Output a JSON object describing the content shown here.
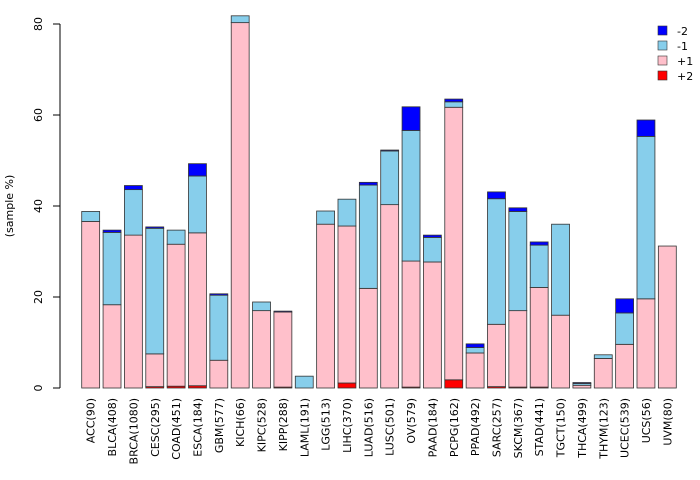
{
  "chart_data": {
    "type": "bar",
    "stacked": true,
    "title": "",
    "xlabel": "",
    "ylabel": "(sample %)",
    "ylim": [
      0,
      82
    ],
    "yticks": [
      0,
      20,
      40,
      60,
      80
    ],
    "grid": false,
    "legend_position": "top-right",
    "categories": [
      "ACC(90)",
      "BLCA(408)",
      "BRCA(1080)",
      "CESC(295)",
      "COAD(451)",
      "ESCA(184)",
      "GBM(577)",
      "KICH(66)",
      "KIPC(528)",
      "KIPP(288)",
      "LAML(191)",
      "LGG(513)",
      "LIHC(370)",
      "LUAD(516)",
      "LUSC(501)",
      "OV(579)",
      "PAAD(184)",
      "PCPG(162)",
      "PPAD(492)",
      "SARC(257)",
      "SKCM(367)",
      "STAD(441)",
      "TGCT(150)",
      "THCA(499)",
      "THYM(123)",
      "UCEC(539)",
      "UCS(56)",
      "UVM(80)"
    ],
    "series": [
      {
        "name": "+2",
        "color": "#ff0000",
        "values": [
          0,
          0,
          0,
          0.3,
          0.4,
          0.5,
          0,
          0,
          0,
          0.2,
          0,
          0,
          1.1,
          0,
          0,
          0.2,
          0,
          1.8,
          0,
          0.3,
          0.2,
          0.2,
          0,
          0,
          0,
          0,
          0,
          0
        ]
      },
      {
        "name": "+1",
        "color": "#ffc0cb",
        "values": [
          36.6,
          18.3,
          33.6,
          7.2,
          31.2,
          33.6,
          6.1,
          80.3,
          17.0,
          16.5,
          0,
          36.0,
          34.5,
          21.9,
          40.3,
          27.7,
          27.7,
          59.9,
          7.7,
          13.7,
          16.8,
          21.9,
          16.0,
          0.6,
          6.5,
          9.6,
          19.6,
          31.2
        ]
      },
      {
        "name": "-1",
        "color": "#87ceeb",
        "values": [
          2.2,
          15.9,
          10.0,
          27.6,
          3.1,
          12.5,
          14.3,
          1.5,
          1.9,
          0,
          2.6,
          2.9,
          5.9,
          22.7,
          11.8,
          28.7,
          5.4,
          1.2,
          1.2,
          27.6,
          21.8,
          9.3,
          20.0,
          0.4,
          0.8,
          6.9,
          35.7,
          0
        ]
      },
      {
        "name": "-2",
        "color": "#0000ff",
        "values": [
          0,
          0.5,
          0.9,
          0.3,
          0,
          2.7,
          0.3,
          0,
          0,
          0.2,
          0,
          0,
          0,
          0.6,
          0.2,
          5.2,
          0.5,
          0.6,
          0.8,
          1.5,
          0.8,
          0.7,
          0,
          0.2,
          0,
          3.1,
          3.6,
          0
        ]
      }
    ],
    "legend_order": [
      "-2",
      "-1",
      "+1",
      "+2"
    ]
  }
}
